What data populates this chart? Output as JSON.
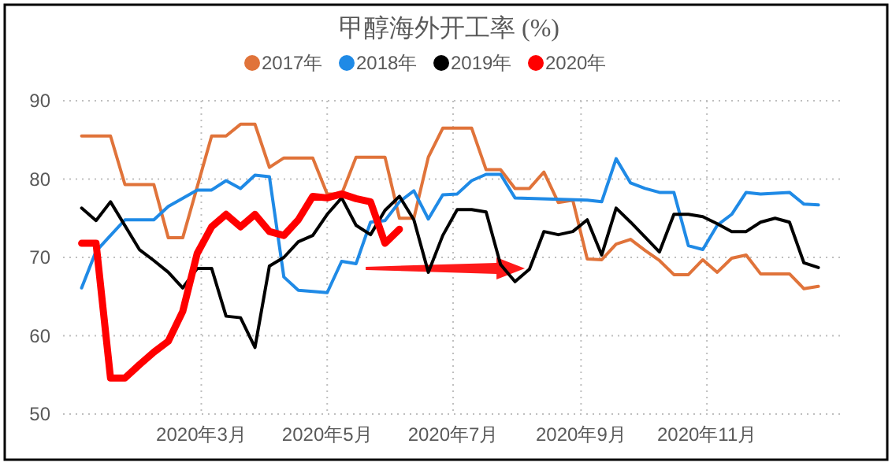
{
  "chart_data": {
    "type": "line",
    "title": "甲醇海外开工率 (%)",
    "legend": "top",
    "grid": true,
    "marker": "none",
    "line_style": "solid",
    "xlim": [
      "2019-12-25",
      "2021-01-06"
    ],
    "xticks": [
      {
        "value": "2020-03-01",
        "label": "2020年3月"
      },
      {
        "value": "2020-05-01",
        "label": "2020年5月"
      },
      {
        "value": "2020-07-01",
        "label": "2020年7月"
      },
      {
        "value": "2020-09-01",
        "label": "2020年9月"
      },
      {
        "value": "2020-11-01",
        "label": "2020年11月"
      }
    ],
    "ylim": [
      50,
      90
    ],
    "yticks": [
      50,
      60,
      70,
      80,
      90
    ],
    "series": [
      {
        "name": "2017年",
        "color": "#e0733a",
        "x": [
          "2020-01-03",
          "2020-01-17",
          "2020-01-24",
          "2020-02-07",
          "2020-02-14",
          "2020-02-21",
          "2020-03-06",
          "2020-03-13",
          "2020-03-20",
          "2020-03-27",
          "2020-04-03",
          "2020-04-10",
          "2020-04-24",
          "2020-05-01",
          "2020-05-08",
          "2020-05-15",
          "2020-05-29",
          "2020-06-05",
          "2020-06-12",
          "2020-06-19",
          "2020-06-26",
          "2020-07-10",
          "2020-07-17",
          "2020-07-24",
          "2020-07-31",
          "2020-08-07",
          "2020-08-14",
          "2020-08-21",
          "2020-08-28",
          "2020-09-04",
          "2020-09-11",
          "2020-09-18",
          "2020-09-25",
          "2020-10-02",
          "2020-10-09",
          "2020-10-16",
          "2020-10-23",
          "2020-10-30",
          "2020-11-06",
          "2020-11-13",
          "2020-11-20",
          "2020-11-27",
          "2020-12-11",
          "2020-12-18",
          "2020-12-25"
        ],
        "values": [
          85.5,
          85.5,
          79.3,
          79.3,
          72.5,
          72.5,
          85.5,
          85.5,
          87,
          87,
          81.5,
          82.7,
          82.7,
          78.1,
          78.1,
          82.8,
          82.8,
          75,
          75,
          82.8,
          86.5,
          86.5,
          81.2,
          81.2,
          78.8,
          78.8,
          80.9,
          77,
          77.3,
          69.8,
          69.7,
          71.7,
          72.3,
          70.9,
          69.6,
          67.8,
          67.8,
          69.7,
          68.1,
          69.9,
          70.3,
          67.9,
          67.9,
          66,
          66.3
        ]
      },
      {
        "name": "2018年",
        "color": "#1f8ae6",
        "x": [
          "2020-01-03",
          "2020-01-10",
          "2020-01-17",
          "2020-01-24",
          "2020-02-07",
          "2020-02-14",
          "2020-02-28",
          "2020-03-06",
          "2020-03-13",
          "2020-03-20",
          "2020-03-27",
          "2020-04-03",
          "2020-04-10",
          "2020-04-17",
          "2020-05-01",
          "2020-05-08",
          "2020-05-15",
          "2020-05-22",
          "2020-05-29",
          "2020-06-05",
          "2020-06-12",
          "2020-06-19",
          "2020-06-26",
          "2020-07-03",
          "2020-07-10",
          "2020-07-17",
          "2020-07-24",
          "2020-07-31",
          "2020-09-04",
          "2020-09-11",
          "2020-09-18",
          "2020-09-25",
          "2020-10-02",
          "2020-10-09",
          "2020-10-16",
          "2020-10-23",
          "2020-10-30",
          "2020-11-06",
          "2020-11-13",
          "2020-11-20",
          "2020-11-27",
          "2020-12-11",
          "2020-12-18",
          "2020-12-25"
        ],
        "values": [
          66.1,
          70.8,
          72.8,
          74.8,
          74.8,
          76.5,
          78.6,
          78.6,
          79.8,
          78.8,
          80.5,
          80.3,
          67.5,
          65.8,
          65.5,
          69.5,
          69.2,
          74.5,
          74.7,
          77.1,
          78.5,
          74.9,
          78,
          78.1,
          79.8,
          80.6,
          80.6,
          77.6,
          77.3,
          77.1,
          82.6,
          79.5,
          78.8,
          78.3,
          78.3,
          71.5,
          71,
          74.1,
          75.5,
          78.3,
          78.1,
          78.3,
          76.8,
          76.7
        ]
      },
      {
        "name": "2019年",
        "color": "#000000",
        "x": [
          "2020-01-03",
          "2020-01-10",
          "2020-01-17",
          "2020-01-31",
          "2020-02-07",
          "2020-02-14",
          "2020-02-21",
          "2020-02-28",
          "2020-03-06",
          "2020-03-13",
          "2020-03-20",
          "2020-03-27",
          "2020-04-03",
          "2020-04-10",
          "2020-04-17",
          "2020-04-24",
          "2020-05-01",
          "2020-05-08",
          "2020-05-15",
          "2020-05-22",
          "2020-05-29",
          "2020-06-05",
          "2020-06-12",
          "2020-06-19",
          "2020-06-26",
          "2020-07-03",
          "2020-07-10",
          "2020-07-17",
          "2020-07-24",
          "2020-07-31",
          "2020-08-07",
          "2020-08-14",
          "2020-08-21",
          "2020-08-28",
          "2020-09-04",
          "2020-09-11",
          "2020-09-18",
          "2020-09-25",
          "2020-10-02",
          "2020-10-09",
          "2020-10-16",
          "2020-10-23",
          "2020-10-30",
          "2020-11-06",
          "2020-11-13",
          "2020-11-20",
          "2020-11-27",
          "2020-12-04",
          "2020-12-11",
          "2020-12-18",
          "2020-12-25"
        ],
        "values": [
          76.3,
          74.7,
          77.1,
          71,
          69.6,
          68.1,
          66.1,
          68.6,
          68.6,
          62.5,
          62.3,
          58.5,
          68.9,
          70,
          72,
          72.8,
          75.5,
          77.6,
          74.1,
          72.9,
          76,
          77.8,
          74.8,
          68.1,
          72.8,
          76.1,
          76.1,
          75.8,
          69.1,
          66.9,
          68.5,
          73.3,
          72.9,
          73.3,
          74.8,
          70.3,
          76.3,
          74.5,
          72.6,
          70.7,
          75.5,
          75.5,
          75.2,
          74.3,
          73.3,
          73.3,
          74.5,
          75,
          74.5,
          69.3,
          68.7
        ]
      },
      {
        "name": "2020年",
        "color": "#ff0000",
        "x": [
          "2020-01-03",
          "2020-01-10",
          "2020-01-17",
          "2020-01-24",
          "2020-01-31",
          "2020-02-07",
          "2020-02-14",
          "2020-02-21",
          "2020-02-28",
          "2020-03-06",
          "2020-03-13",
          "2020-03-20",
          "2020-03-27",
          "2020-04-03",
          "2020-04-10",
          "2020-04-17",
          "2020-04-24",
          "2020-05-01",
          "2020-05-08",
          "2020-05-15",
          "2020-05-22",
          "2020-05-29",
          "2020-06-05"
        ],
        "values": [
          71.8,
          71.8,
          54.6,
          54.6,
          56.3,
          57.9,
          59.3,
          63.1,
          70.5,
          73.9,
          75.5,
          73.9,
          75.5,
          73.3,
          72.8,
          74.8,
          77.8,
          77.6,
          78.1,
          77.5,
          77.1,
          71.8,
          73.6
        ]
      }
    ]
  }
}
